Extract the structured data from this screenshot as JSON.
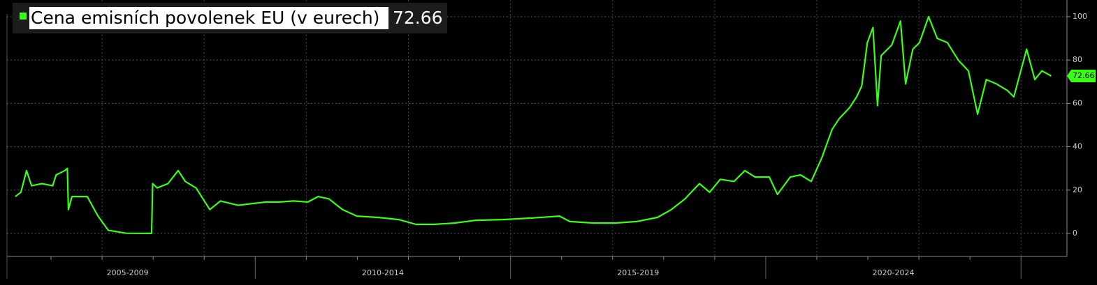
{
  "chart_data": {
    "type": "line",
    "title": "Cena emisních povolenek EU (v eurech)",
    "series": [
      {
        "name": "Cena emisních povolenek EU (v eurech)",
        "color": "#39ff14",
        "last_label": "72.66",
        "x": [
          2005.3,
          2005.41,
          2005.52,
          2005.62,
          2005.82,
          2006.03,
          2006.1,
          2006.27,
          2006.32,
          2006.34,
          2006.41,
          2006.71,
          2006.92,
          2007.12,
          2007.47,
          2007.97,
          2007.99,
          2008.08,
          2008.29,
          2008.49,
          2008.63,
          2008.84,
          2009.11,
          2009.32,
          2009.66,
          2010.21,
          2010.48,
          2010.75,
          2011.03,
          2011.23,
          2011.44,
          2011.71,
          2011.99,
          2012.4,
          2012.81,
          2013.15,
          2013.49,
          2013.9,
          2014.32,
          2014.86,
          2015.41,
          2015.96,
          2016.16,
          2016.64,
          2017.05,
          2017.47,
          2017.88,
          2018.15,
          2018.42,
          2018.7,
          2018.9,
          2019.11,
          2019.38,
          2019.59,
          2019.79,
          2020.07,
          2020.23,
          2020.48,
          2020.68,
          2020.89,
          2021.1,
          2021.3,
          2021.44,
          2021.64,
          2021.78,
          2021.88,
          2021.99,
          2022.1,
          2022.19,
          2022.26,
          2022.47,
          2022.64,
          2022.74,
          2022.88,
          2023.01,
          2023.19,
          2023.36,
          2023.56,
          2023.77,
          2023.97,
          2024.15,
          2024.32,
          2024.52,
          2024.73,
          2024.86,
          2025.11,
          2025.27,
          2025.41,
          2025.59
        ],
        "values": [
          17,
          19,
          29,
          22,
          23,
          22,
          27,
          29,
          30,
          11,
          17,
          17,
          8,
          1.5,
          0.1,
          0.05,
          23,
          21,
          23,
          29,
          24,
          21,
          11,
          15,
          13,
          14.5,
          14.5,
          15,
          14.5,
          17,
          16,
          11,
          8,
          7.4,
          6.4,
          4.2,
          4.2,
          4.8,
          6.1,
          6.4,
          7.1,
          8,
          5.5,
          4.8,
          4.8,
          5.5,
          7.4,
          11,
          16,
          23,
          19,
          25,
          24,
          29,
          26,
          26,
          18,
          26,
          27,
          24,
          35,
          48,
          53,
          58,
          63,
          68,
          88,
          95,
          59,
          82,
          87,
          98,
          69,
          85,
          88,
          100,
          90,
          88,
          80,
          75,
          55,
          71,
          69,
          66,
          63,
          85,
          71,
          75,
          72.66
        ]
      }
    ],
    "xlim": [
      2005,
      2025.9
    ],
    "xticks": [
      2006,
      2007,
      2008,
      2009,
      2010,
      2011,
      2012,
      2013,
      2014,
      2015,
      2016,
      2017,
      2018,
      2019,
      2020,
      2021,
      2022,
      2023,
      2024,
      2025
    ],
    "period_bounds": [
      2005,
      2010,
      2015,
      2020,
      2025
    ],
    "period_labels": [
      "2005-2009",
      "2010-2014",
      "2015-2019",
      "2020-2024"
    ],
    "ylim": [
      -10.6,
      107.7
    ],
    "yticks": [
      0,
      20,
      40,
      60,
      80,
      100
    ],
    "grid": true
  }
}
